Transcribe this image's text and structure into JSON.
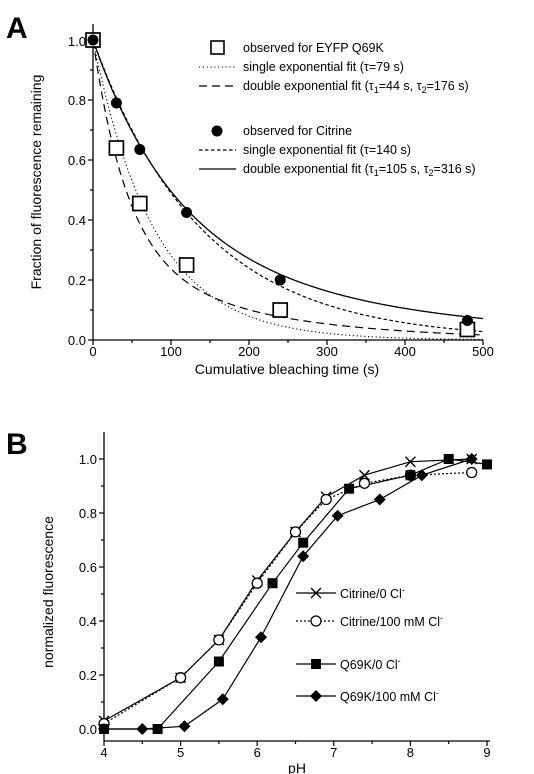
{
  "chart_data": [
    {
      "panel": "A",
      "type": "scatter",
      "xlabel": "Cumulative bleaching time (s)",
      "ylabel": "Fraction of fluorescence remaining",
      "xlim": [
        0,
        500
      ],
      "ylim": [
        0,
        1.05
      ],
      "x_ticks": [
        0,
        100,
        200,
        300,
        400,
        500
      ],
      "y_ticks": [
        0.0,
        0.2,
        0.4,
        0.6,
        0.8,
        1.0
      ],
      "series": [
        {
          "name": "observed for EYFP Q69K",
          "marker": "open-square",
          "x": [
            0,
            30,
            60,
            120,
            240,
            480
          ],
          "y": [
            1.0,
            0.64,
            0.455,
            0.25,
            0.1,
            0.035
          ]
        },
        {
          "name": "single exponential fit (τ=79 s)",
          "line": "dotted",
          "model": "single_exp",
          "tau": 79
        },
        {
          "name": "double exponential fit (τ1=44 s, τ2=176 s)",
          "line": "dashed",
          "model": "double_exp",
          "a": 0.71,
          "tau1": 44,
          "tau2": 176
        },
        {
          "name": "observed for Citrine",
          "marker": "filled-circle",
          "x": [
            0,
            30,
            60,
            120,
            240,
            480
          ],
          "y": [
            1.0,
            0.79,
            0.635,
            0.425,
            0.2,
            0.065
          ]
        },
        {
          "name": "single exponential fit (τ=140 s)",
          "line": "short-dashed",
          "model": "single_exp",
          "tau": 140
        },
        {
          "name": "double exponential fit (τ1=105 s, τ2=316 s)",
          "line": "solid",
          "model": "double_exp",
          "a": 0.68,
          "tau1": 105,
          "tau2": 316
        }
      ],
      "legend_placement": "top-right"
    },
    {
      "panel": "B",
      "type": "line",
      "xlabel": "pH",
      "ylabel": "normalized fluorescence",
      "xlim": [
        4,
        9
      ],
      "ylim": [
        -0.05,
        1.1
      ],
      "x_ticks": [
        4,
        5,
        6,
        7,
        8,
        9
      ],
      "y_ticks": [
        0.0,
        0.2,
        0.4,
        0.6,
        0.8,
        1.0
      ],
      "series": [
        {
          "name": "Citrine/0 Cl⁻",
          "marker": "x",
          "line": "solid",
          "x": [
            4.0,
            5.0,
            5.5,
            6.0,
            6.5,
            6.9,
            7.4,
            8.0,
            8.8
          ],
          "y": [
            0.03,
            0.19,
            0.33,
            0.55,
            0.73,
            0.86,
            0.94,
            0.99,
            1.0
          ]
        },
        {
          "name": "Citrine/100 mM Cl⁻",
          "marker": "open-circle",
          "line": "dotted",
          "x": [
            4.0,
            5.0,
            5.5,
            6.0,
            6.5,
            6.9,
            7.4,
            8.0,
            8.8
          ],
          "y": [
            0.02,
            0.19,
            0.33,
            0.54,
            0.73,
            0.85,
            0.91,
            0.94,
            0.95
          ]
        },
        {
          "name": "Q69K/0 Cl⁻",
          "marker": "filled-square",
          "line": "solid",
          "x": [
            4.0,
            4.7,
            5.5,
            6.2,
            6.6,
            7.2,
            8.0,
            8.5,
            9.0
          ],
          "y": [
            0.0,
            0.0,
            0.25,
            0.54,
            0.69,
            0.89,
            0.94,
            1.0,
            0.98
          ]
        },
        {
          "name": "Q69K/100 mM Cl⁻",
          "marker": "filled-diamond",
          "line": "solid",
          "x": [
            4.0,
            4.5,
            5.05,
            5.55,
            6.05,
            6.6,
            7.05,
            7.6,
            8.15,
            8.8
          ],
          "y": [
            0.0,
            0.0,
            0.01,
            0.11,
            0.34,
            0.64,
            0.79,
            0.85,
            0.94,
            1.0
          ]
        }
      ],
      "legend_placement": "bottom-right"
    }
  ],
  "panels": {
    "a": {
      "letter": "A",
      "xlabel": "Cumulative bleaching time (s)",
      "ylabel": "Fraction of fluorescence remaining",
      "xticks": [
        "0",
        "100",
        "200",
        "300",
        "400",
        "500"
      ],
      "yticks": [
        "0.0",
        "0.2",
        "0.4",
        "0.6",
        "0.8",
        "1.0"
      ],
      "legend": {
        "eyfp_obs": "observed for EYFP Q69K",
        "eyfp_single": "single exponential fit (τ=79 s)",
        "eyfp_double_pre": "double exponential fit (τ",
        "eyfp_double_mid": "=44 s, τ",
        "eyfp_double_post": "=176 s)",
        "cit_obs": "observed for Citrine",
        "cit_single": "single exponential fit (τ=140 s)",
        "cit_double_pre": "double exponential fit (τ",
        "cit_double_mid": "=105 s, τ",
        "cit_double_post": "=316 s)",
        "sub1": "1",
        "sub2": "2"
      }
    },
    "b": {
      "letter": "B",
      "xlabel": "pH",
      "ylabel": "normalized fluorescence",
      "xticks": [
        "4",
        "5",
        "6",
        "7",
        "8",
        "9"
      ],
      "yticks": [
        "0.0",
        "0.2",
        "0.4",
        "0.6",
        "0.8",
        "1.0"
      ],
      "legend": {
        "s1_main": "Citrine/0 Cl",
        "s2_main": "Citrine/100 mM Cl",
        "s3_main": "Q69K/0 Cl",
        "s4_main": "Q69K/100 mM Cl",
        "minus": "-"
      }
    }
  }
}
